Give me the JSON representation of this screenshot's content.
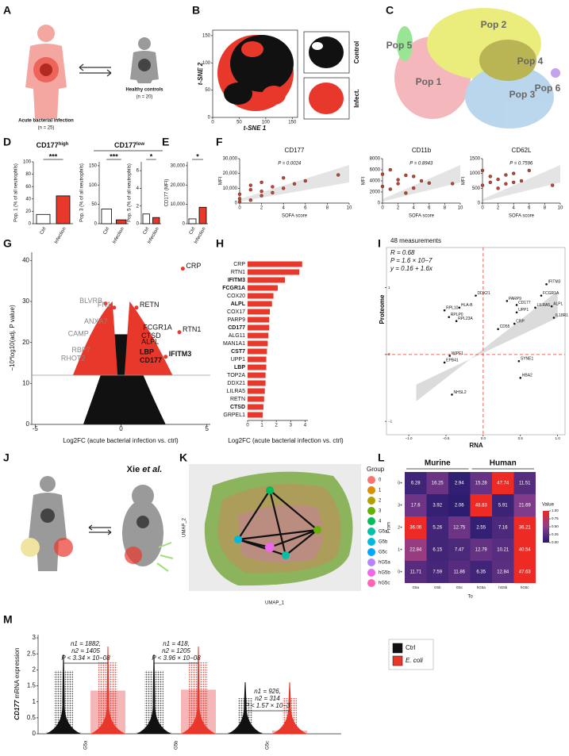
{
  "A": {
    "label": "A",
    "infection": "Acute bacterial infection",
    "infection_n": "(n = 25)",
    "controls": "Healthy controls",
    "controls_n": "(n = 20)"
  },
  "B": {
    "label": "B",
    "xlabel": "t-SNE 1",
    "ylabel": "t-SNE 2",
    "xlim": [
      0,
      160
    ],
    "ylim": [
      0,
      160
    ],
    "xticks": [
      0,
      50,
      100,
      150
    ],
    "yticks": [
      0,
      50,
      100,
      150
    ],
    "insets": [
      "Control",
      "Infect."
    ]
  },
  "C": {
    "label": "C",
    "populations": [
      "Pop 1",
      "Pop 2",
      "Pop 3",
      "Pop 4",
      "Pop 5",
      "Pop 6"
    ]
  },
  "D": {
    "label": "D",
    "high": {
      "main": "CD177",
      "sup": "high"
    },
    "low": {
      "main": "CD177",
      "sup": "low"
    },
    "categories": [
      "Ctrl",
      "Infection"
    ],
    "colors": [
      "#ffffff",
      "#e8382b"
    ],
    "plots": [
      {
        "ylabel": "Pop. 1 (% of all neutrophils)",
        "ylim": [
          0,
          100
        ],
        "yticks": [
          0,
          20,
          40,
          60,
          80,
          100
        ],
        "values": [
          15,
          45
        ],
        "sig": "***"
      },
      {
        "ylabel": "Pop. 3 (% of all neutrophils)",
        "ylim": [
          0,
          160
        ],
        "yticks": [
          0,
          50,
          100,
          150
        ],
        "values": [
          38,
          10
        ],
        "sig": "***"
      },
      {
        "ylabel": "Pop. 5 (% of all neutrophils)",
        "ylim": [
          0,
          7
        ],
        "yticks": [
          0,
          2,
          4,
          6
        ],
        "values": [
          1.1,
          0.7
        ],
        "sig": "*"
      }
    ]
  },
  "E": {
    "label": "E",
    "ylabel": "CD177 (MFI)",
    "ylim": [
      0,
      32000
    ],
    "yticks": [
      0,
      {
        "value": 10000,
        "label": "10,000"
      },
      {
        "value": 20000,
        "label": "20,000"
      },
      {
        "value": 30000,
        "label": "30,000"
      }
    ],
    "categories": [
      "Ctrl",
      "Infection"
    ],
    "colors": [
      "#ffffff",
      "#e8382b"
    ],
    "values": [
      2500,
      8500
    ],
    "sig": "*"
  },
  "F": {
    "label": "F",
    "xlabel": "SOFA score",
    "ylabel": "MFI",
    "xlim": [
      0,
      10
    ],
    "xticks": [
      0,
      2,
      4,
      6,
      8,
      10
    ],
    "color": "#b5483a",
    "plots": [
      {
        "title": "CD177",
        "p": "P = 0.0024",
        "ylim": [
          0,
          30000
        ],
        "yticks": [
          0,
          {
            "value": 10000,
            "label": "10,000"
          },
          {
            "value": 20000,
            "label": "20,000"
          },
          {
            "value": 30000,
            "label": "30,000"
          }
        ],
        "x": [
          0,
          0,
          0,
          1,
          1,
          1,
          2,
          2,
          2,
          3,
          3,
          4,
          4,
          5,
          6,
          9
        ],
        "y": [
          1000,
          3000,
          6000,
          2000,
          9000,
          12000,
          5000,
          8000,
          14000,
          7000,
          11000,
          10000,
          17000,
          13000,
          15000,
          19000
        ]
      },
      {
        "title": "CD11b",
        "p": "P = 0.8943",
        "ylim": [
          0,
          8000
        ],
        "yticks": [
          0,
          2000,
          4000,
          6000,
          8000
        ],
        "x": [
          0,
          0,
          1,
          1,
          2,
          2,
          3,
          3,
          4,
          4,
          5,
          6,
          9
        ],
        "y": [
          3000,
          5200,
          2500,
          6000,
          3500,
          4200,
          1800,
          5000,
          4800,
          2700,
          4000,
          3600,
          3500
        ]
      },
      {
        "title": "CD62L",
        "p": "P = 0.7596",
        "ylim": [
          0,
          1500
        ],
        "yticks": [
          0,
          500,
          1000,
          1500
        ],
        "x": [
          0,
          0,
          1,
          1,
          2,
          2,
          3,
          3,
          4,
          4,
          5,
          6,
          9
        ],
        "y": [
          600,
          1100,
          700,
          900,
          500,
          800,
          950,
          650,
          1000,
          700,
          750,
          1100,
          600
        ]
      }
    ]
  },
  "G": {
    "label": "G",
    "xlabel": "Log2FC (acute bacterial infection vs. ctrl)",
    "ylabel": "−10*log10(adj. P value)",
    "xlim": [
      -5.2,
      5.2
    ],
    "ylim": [
      0,
      42
    ],
    "xticks": [
      -5,
      0,
      5
    ],
    "yticks": [
      0,
      10,
      20,
      30,
      40
    ],
    "threshold": 12,
    "color": "#e8382b",
    "genes": [
      {
        "name": "CRP",
        "x": 3.6,
        "y": 38
      },
      {
        "name": "BLVRB",
        "x": -0.9,
        "y": 29.5
      },
      {
        "name": "FN1",
        "x": -0.4,
        "y": 28.5
      },
      {
        "name": "RETN",
        "x": 0.9,
        "y": 28.5
      },
      {
        "name": "ANXA7",
        "x": -0.6,
        "y": 24.5
      },
      {
        "name": "CAMP",
        "x": -1.7,
        "y": 21.5
      },
      {
        "name": "FCGR1A",
        "x": 1.1,
        "y": 23
      },
      {
        "name": "CTSD",
        "x": 1.0,
        "y": 21
      },
      {
        "name": "RTN1",
        "x": 3.4,
        "y": 22.5
      },
      {
        "name": "ALPL",
        "x": 1.0,
        "y": 19.5
      },
      {
        "name": "LBP",
        "x": 0.9,
        "y": 17,
        "bold": true
      },
      {
        "name": "RBP7",
        "x": -1.6,
        "y": 17.5
      },
      {
        "name": "RHOT2",
        "x": -1.9,
        "y": 15.5
      },
      {
        "name": "IFITM3",
        "x": 2.6,
        "y": 16.5,
        "bold": true
      },
      {
        "name": "CD177",
        "x": 0.9,
        "y": 15,
        "bold": true
      }
    ]
  },
  "H": {
    "label": "H",
    "xlabel": "Log2FC (acute bacterial infection vs. ctrl)",
    "xlim": [
      0,
      4.2
    ],
    "xticks": [
      0,
      1,
      2,
      3,
      4
    ],
    "color": "#e8382b",
    "categories": [
      "CRP",
      "RTN1",
      "IFITM3",
      "FCGR1A",
      "COX20",
      "ALPL",
      "COX17",
      "PARP9",
      "CD177",
      "ALG11",
      "MAN1A1",
      "CST7",
      "UPP1",
      "LBP",
      "TOP2A",
      "DDX21",
      "LILRA5",
      "RETN",
      "CTSD",
      "GRPEL1"
    ],
    "values": [
      3.8,
      3.6,
      2.6,
      2.1,
      1.8,
      1.7,
      1.55,
      1.5,
      1.5,
      1.45,
      1.4,
      1.35,
      1.3,
      1.3,
      1.25,
      1.25,
      1.2,
      1.15,
      1.1,
      1.05
    ],
    "bold_indices": [
      2,
      3,
      5,
      8,
      11,
      13,
      18
    ]
  },
  "I": {
    "label": "I",
    "count": "48 measurements",
    "r": "R = 0.68",
    "p": "P = 1.6 × 10−7",
    "fit": "y = 0.16 + 1.6x",
    "xlabel": "RNA",
    "ylabel": "Proteome",
    "xlim": [
      -1.3,
      1.1
    ],
    "ylim": [
      -1.2,
      1.6
    ],
    "xticks": [
      {
        "value": -1,
        "label": "−1.0"
      },
      {
        "value": -0.5,
        "label": "−0.5"
      },
      {
        "value": 0,
        "label": "0.0"
      },
      {
        "value": 0.5,
        "label": "0.5"
      },
      {
        "value": 1,
        "label": "1.0"
      }
    ],
    "yticks": [
      {
        "value": -1,
        "label": "−1"
      },
      0,
      1
    ],
    "genes": [
      {
        "name": "IFITM3",
        "x": 0.85,
        "y": 1.05
      },
      {
        "name": "FCGR1A",
        "x": 0.78,
        "y": 0.88
      },
      {
        "name": "ALPL",
        "x": 0.92,
        "y": 0.72
      },
      {
        "name": "LILRA5",
        "x": 0.7,
        "y": 0.7
      },
      {
        "name": "IL18R1",
        "x": 0.95,
        "y": 0.55
      },
      {
        "name": "CD177",
        "x": 0.45,
        "y": 0.74
      },
      {
        "name": "PARP9",
        "x": 0.32,
        "y": 0.8
      },
      {
        "name": "UPP1",
        "x": 0.45,
        "y": 0.63
      },
      {
        "name": "CRP",
        "x": 0.42,
        "y": 0.46
      },
      {
        "name": "CD55",
        "x": 0.2,
        "y": 0.38
      },
      {
        "name": "DDX21",
        "x": -0.1,
        "y": 0.88
      },
      {
        "name": "HLA-B",
        "x": -0.32,
        "y": 0.7
      },
      {
        "name": "RPL10",
        "x": -0.52,
        "y": 0.66
      },
      {
        "name": "RPLP0",
        "x": -0.46,
        "y": 0.56
      },
      {
        "name": "RPL23A",
        "x": -0.36,
        "y": 0.5
      },
      {
        "name": "WIPF1",
        "x": -0.45,
        "y": -0.02
      },
      {
        "name": "EPB41",
        "x": -0.52,
        "y": -0.12
      },
      {
        "name": "SYNE1",
        "x": 0.48,
        "y": -0.1
      },
      {
        "name": "HBA2",
        "x": 0.5,
        "y": -0.35
      },
      {
        "name": "NHSL2",
        "x": -0.42,
        "y": -0.6
      }
    ]
  },
  "J": {
    "label": "J",
    "author": "Xie",
    "etal": "et al."
  },
  "K": {
    "label": "K",
    "xlabel": "UMAP_1",
    "ylabel": "UMAP_2",
    "legend_title": "Group",
    "groups": [
      {
        "name": "0",
        "color": "#F8766D"
      },
      {
        "name": "1",
        "color": "#DB8E00"
      },
      {
        "name": "2",
        "color": "#AEA200"
      },
      {
        "name": "3",
        "color": "#64B200"
      },
      {
        "name": "4",
        "color": "#00BD5C"
      },
      {
        "name": "G5a",
        "color": "#00C1A7"
      },
      {
        "name": "G5b",
        "color": "#00BADE"
      },
      {
        "name": "G5c",
        "color": "#00A6FF"
      },
      {
        "name": "hG5a",
        "color": "#B385FF"
      },
      {
        "name": "hG5b",
        "color": "#EF67EB"
      },
      {
        "name": "hG5c",
        "color": "#FF63B6"
      }
    ]
  },
  "L": {
    "label": "L",
    "groups": [
      "Murine",
      "Human"
    ],
    "xlabel": "To",
    "ylabel": "From",
    "legend_title": "Value",
    "columns": [
      "G5a",
      "G5b",
      "G5c",
      "hG5a",
      "hG5b",
      "hG5c"
    ],
    "rows": [
      "0+",
      "3+",
      "2+",
      "1+",
      "0+"
    ],
    "values": [
      [
        6.28,
        16.25,
        2.94,
        15.28,
        47.74,
        11.51
      ],
      [
        17.6,
        3.92,
        2.06,
        48.83,
        5.91,
        21.69
      ],
      [
        36.06,
        5.26,
        12.75,
        2.55,
        7.16,
        36.21
      ],
      [
        22.84,
        6.15,
        7.47,
        12.79,
        10.21,
        40.54
      ],
      [
        11.71,
        7.59,
        11.86,
        6.35,
        12.84,
        47.63
      ]
    ],
    "legend_ticks": [
      {
        "value": 0,
        "label": "0.00"
      },
      {
        "value": 0.25,
        "label": "0.25"
      },
      {
        "value": 0.5,
        "label": "0.50"
      },
      {
        "value": 0.75,
        "label": "0.75"
      },
      {
        "value": 1,
        "label": "1.00"
      }
    ]
  },
  "M": {
    "label": "M",
    "ylabel": {
      "gene": "CD177",
      "rest": " mRNA expression"
    },
    "ylim": [
      0,
      3.1
    ],
    "yticks": [
      0,
      0.5,
      1,
      1.5,
      2,
      2.5,
      3
    ],
    "categories": [
      "G5a",
      "G5b",
      "G5c"
    ],
    "series": [
      {
        "name": "Ctrl",
        "color": "#111111",
        "values": [
          0.05,
          0.05,
          0.05
        ]
      },
      {
        "name": "E. coli",
        "color": "#e8382b",
        "values": [
          1.35,
          1.38,
          0.1
        ]
      }
    ],
    "annotations": [
      [
        "n1 = 1882,",
        "n2 = 1405",
        "P < 3.34 × 10−08"
      ],
      [
        "n1 = 418,",
        "n2 = 1205",
        "P < 3.96 × 10−08"
      ],
      [
        "n1 = 926,",
        "n2 = 314",
        "P < 1.57 × 10−3"
      ]
    ]
  }
}
